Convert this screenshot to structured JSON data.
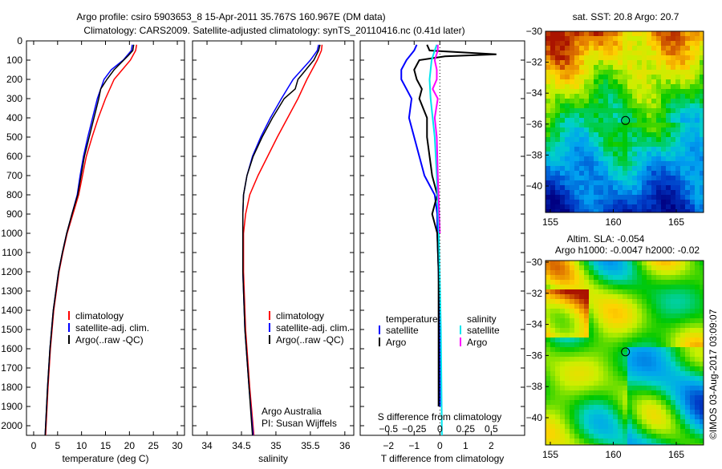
{
  "title_line1": "Argo profile: csiro 5903653_8 15-Apr-2011 35.767S 160.967E (DM data)",
  "title_line2": "Climatology: CARS2009. Satellite-adjusted climatology: synTS_20110416.nc (0.41d later)",
  "colors": {
    "climatology": "#ff0000",
    "satellite": "#0000ff",
    "argo": "#000000",
    "sal_satellite": "#00e5ee",
    "sal_argo": "#ff00ff"
  },
  "credit": "Argo Australia",
  "pi": "PI: Susan Wijffels",
  "stamp": "©IMOS 03-Aug-2017 03:09:07",
  "chart_data": [
    {
      "type": "line",
      "xlabel": "temperature (deg C)",
      "ylabel": "",
      "xlim": [
        -1.5,
        31.5
      ],
      "ylim": [
        2050,
        0
      ],
      "xticks": [
        0,
        5,
        10,
        15,
        20,
        25,
        30
      ],
      "yticks": [
        0,
        100,
        200,
        300,
        400,
        500,
        600,
        700,
        800,
        900,
        1000,
        1100,
        1200,
        1300,
        1400,
        1500,
        1600,
        1700,
        1800,
        1900,
        2000
      ],
      "legend": [
        "climatology",
        "satellite-adj. clim.",
        "Argo(..raw -QC)"
      ],
      "series": [
        {
          "name": "climatology",
          "depth": [
            20,
            50,
            100,
            150,
            200,
            300,
            400,
            500,
            600,
            700,
            800,
            900,
            1000,
            1100,
            1200,
            1400,
            1600,
            1800,
            2050
          ],
          "values": [
            21.5,
            21.3,
            20.2,
            18.5,
            16.8,
            15,
            13.5,
            12.2,
            11,
            10.2,
            9.4,
            8.2,
            7,
            6.1,
            5.3,
            4.2,
            3.5,
            3,
            2.5
          ]
        },
        {
          "name": "satellite-adj. clim.",
          "depth": [
            20,
            50,
            100,
            150,
            200,
            300,
            400,
            500,
            600,
            700,
            800,
            900,
            1000,
            1100,
            1200,
            1400,
            1600,
            1800,
            2050
          ],
          "values": [
            20.6,
            20.4,
            18.7,
            16.2,
            14.7,
            13.3,
            12.3,
            11.3,
            10.4,
            9.7,
            9.1,
            8,
            6.9,
            6,
            5.2,
            4.1,
            3.4,
            2.9,
            2.4
          ]
        },
        {
          "name": "Argo(..raw -QC)",
          "depth": [
            20,
            50,
            75,
            100,
            150,
            200,
            250,
            300,
            400,
            500,
            600,
            700,
            800,
            900,
            1000,
            1100,
            1200,
            1400,
            1600,
            1800,
            2050
          ],
          "values": [
            20.9,
            20.7,
            19.8,
            18.8,
            16.8,
            15.3,
            14,
            13.6,
            12.6,
            11.6,
            10.6,
            9.9,
            9.2,
            8,
            6.9,
            6,
            5.2,
            4.1,
            3.4,
            2.9,
            2.4
          ]
        }
      ]
    },
    {
      "type": "line",
      "xlabel": "salinity",
      "xlim": [
        33.79,
        36.13
      ],
      "ylim": [
        2050,
        0
      ],
      "xticks": [
        34,
        34.5,
        35,
        35.5,
        36
      ],
      "legend": [
        "climatology",
        "satellite-adj. clim.",
        "Argo(..raw -QC)"
      ],
      "series": [
        {
          "name": "climatology",
          "depth": [
            20,
            50,
            100,
            200,
            300,
            400,
            500,
            600,
            700,
            800,
            900,
            1000,
            1200,
            1500,
            1800,
            2050
          ],
          "values": [
            35.67,
            35.66,
            35.6,
            35.45,
            35.32,
            35.17,
            35.02,
            34.88,
            34.74,
            34.62,
            34.56,
            34.53,
            34.53,
            34.56,
            34.62,
            34.68
          ]
        },
        {
          "name": "satellite-adj. clim.",
          "depth": [
            20,
            50,
            100,
            200,
            300,
            400,
            500,
            600,
            700,
            800,
            900,
            1000,
            1200,
            1500,
            1800,
            2050
          ],
          "values": [
            35.62,
            35.6,
            35.5,
            35.25,
            35.08,
            34.92,
            34.78,
            34.66,
            34.58,
            34.53,
            34.52,
            34.52,
            34.52,
            34.55,
            34.61,
            34.67
          ]
        },
        {
          "name": "Argo(..raw -QC)",
          "depth": [
            20,
            50,
            100,
            200,
            250,
            300,
            400,
            500,
            600,
            700,
            800,
            900,
            1000,
            1200,
            1500,
            1800,
            2050
          ],
          "values": [
            35.64,
            35.62,
            35.55,
            35.32,
            35.28,
            35.12,
            34.95,
            34.8,
            34.67,
            34.58,
            34.53,
            34.52,
            34.52,
            34.52,
            34.55,
            34.61,
            34.66
          ]
        }
      ]
    },
    {
      "type": "line",
      "xlabel": "T difference from climatology",
      "x2label": "S difference from climatology",
      "xlim": [
        -3.1,
        3.3
      ],
      "ylim": [
        2050,
        0
      ],
      "xticks": [
        -2,
        -1,
        0,
        1,
        2
      ],
      "x2ticks": [
        -0.5,
        -0.25,
        0,
        0.25,
        0.5
      ],
      "legend_titles": [
        "temperature",
        "salinity"
      ],
      "legend": [
        "satellite",
        "Argo",
        "satellite",
        "Argo"
      ],
      "series": [
        {
          "name": "temperature satellite",
          "depth": [
            20,
            50,
            100,
            150,
            200,
            300,
            400,
            500,
            600,
            700,
            800,
            900,
            1000,
            1200,
            1500,
            1900
          ],
          "values": [
            -0.9,
            -1,
            -1.3,
            -1.5,
            -1.5,
            -1.1,
            -1.2,
            -1,
            -0.8,
            -0.6,
            -0.2,
            -0.1,
            -0.1,
            -0.05,
            0,
            0
          ]
        },
        {
          "name": "temperature Argo",
          "depth": [
            20,
            50,
            70,
            80,
            100,
            150,
            200,
            250,
            300,
            400,
            500,
            600,
            700,
            800,
            900,
            1000,
            1200,
            1500,
            1900
          ],
          "values": [
            -0.5,
            -0.4,
            2.2,
            0.2,
            -0.8,
            -1,
            -0.9,
            -0.7,
            -0.8,
            -0.5,
            -0.5,
            -0.4,
            -0.3,
            -0.1,
            -0.3,
            -0.1,
            -0.05,
            -0.05,
            -0.05
          ]
        },
        {
          "name": "salinity satellite",
          "depth": [
            20,
            50,
            100,
            200,
            300,
            400,
            500,
            700,
            1000,
            1500,
            2050
          ],
          "values": [
            -0.03,
            -0.05,
            -0.08,
            -0.1,
            -0.09,
            -0.07,
            -0.05,
            -0.03,
            -0.01,
            0.01,
            0.02
          ]
        },
        {
          "name": "salinity Argo",
          "depth": [
            20,
            50,
            100,
            150,
            200,
            250,
            300,
            400,
            500,
            700,
            1000
          ],
          "values": [
            -0.02,
            -0.02,
            -0.05,
            -0.03,
            -0.03,
            -0.07,
            -0.02,
            -0.05,
            -0.03,
            -0.02,
            0
          ]
        }
      ]
    },
    {
      "type": "heatmap",
      "title": "sat. SST: 20.8 Argo: 20.7",
      "xticks": [
        155,
        160,
        165
      ],
      "yticks": [
        -30,
        -32,
        -34,
        -36,
        -38,
        -40
      ],
      "marker": [
        160.967,
        -35.767
      ]
    },
    {
      "type": "heatmap",
      "title": "Altim. SLA: -0.054",
      "subtitle": "Argo h1000: -0.0047 h2000: -0.02",
      "xticks": [
        155,
        160,
        165
      ],
      "yticks": [
        -30,
        -32,
        -34,
        -36,
        -38,
        -40
      ],
      "marker": [
        160.967,
        -35.767
      ]
    }
  ]
}
